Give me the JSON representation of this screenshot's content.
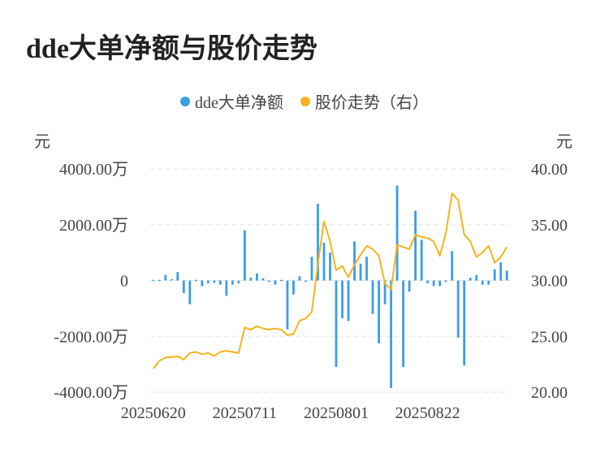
{
  "colors": {
    "bar": "#3b9de6",
    "line": "#f5b41e",
    "grid": "#e3e3e3",
    "text": "#444444"
  },
  "chart_data": {
    "type": "bar+line",
    "title": "dde大单净额与股价走势",
    "legend": [
      {
        "label": "dde大单净额",
        "color": "#3b9de6"
      },
      {
        "label": "股价走势（右）",
        "color": "#f5b41e"
      }
    ],
    "left_unit": "元",
    "right_unit": "元",
    "left_axis": {
      "min": -4000,
      "max": 4000,
      "ticks": [
        "4000.00万",
        "2000.00万",
        "0",
        "-2000.00万",
        "-4000.00万"
      ]
    },
    "right_axis": {
      "min": 20,
      "max": 40,
      "ticks": [
        "40.00",
        "35.00",
        "30.00",
        "25.00",
        "20.00"
      ]
    },
    "x_tick_labels": [
      {
        "index": 0,
        "label": "20250620"
      },
      {
        "index": 15,
        "label": "20250711"
      },
      {
        "index": 30,
        "label": "20250801"
      },
      {
        "index": 45,
        "label": "20250822"
      }
    ],
    "series": [
      {
        "name": "dde大单净额",
        "type": "bar",
        "unit": "万元",
        "values": [
          20,
          20,
          200,
          50,
          300,
          -450,
          -850,
          20,
          -200,
          -100,
          -80,
          -150,
          -550,
          -150,
          -100,
          1800,
          100,
          250,
          80,
          -50,
          -150,
          -20,
          -1750,
          -500,
          150,
          -50,
          850,
          2750,
          1350,
          1000,
          -3100,
          -1350,
          -1450,
          1400,
          600,
          850,
          -1200,
          -2250,
          -850,
          -3850,
          3400,
          -3100,
          -400,
          2500,
          1450,
          -100,
          -200,
          -200,
          -50,
          1050,
          -2050,
          -3050,
          100,
          200,
          -150,
          -150,
          400,
          650,
          350
        ]
      },
      {
        "name": "股价走势（右）",
        "type": "line",
        "unit": "元",
        "values": [
          22.1,
          22.8,
          23.1,
          23.15,
          23.2,
          22.9,
          23.5,
          23.6,
          23.4,
          23.5,
          23.25,
          23.6,
          23.7,
          23.6,
          23.5,
          25.8,
          25.6,
          25.9,
          25.7,
          25.6,
          25.7,
          25.6,
          25.1,
          25.2,
          26.4,
          26.6,
          27.2,
          31.5,
          35.3,
          33.5,
          30.9,
          31.3,
          30.3,
          31.4,
          32.3,
          33.1,
          32.8,
          32.2,
          29.7,
          29.2,
          33.2,
          33.0,
          32.8,
          34.1,
          33.9,
          33.8,
          33.5,
          32.2,
          34.3,
          37.8,
          37.2,
          34.1,
          33.5,
          32.1,
          32.5,
          33.1,
          31.6,
          32.1,
          33.0
        ]
      }
    ]
  }
}
